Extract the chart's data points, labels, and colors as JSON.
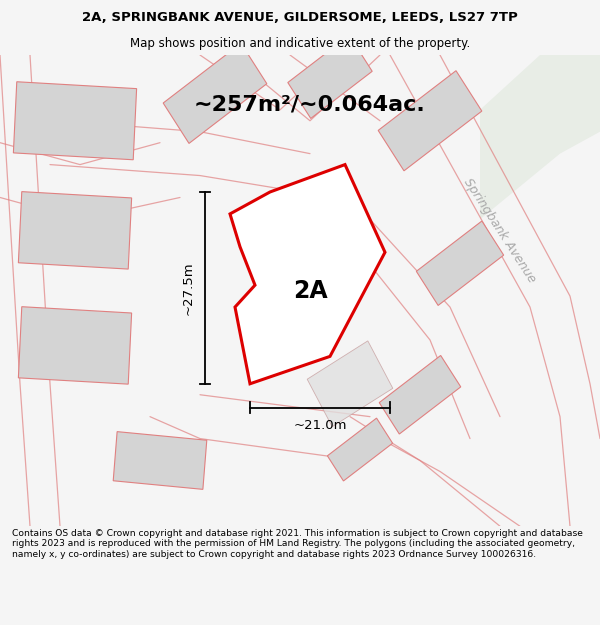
{
  "title_line1": "2A, SPRINGBANK AVENUE, GILDERSOME, LEEDS, LS27 7TP",
  "title_line2": "Map shows position and indicative extent of the property.",
  "area_label": "~257m²/~0.064ac.",
  "plot_label": "2A",
  "width_label": "~21.0m",
  "height_label": "~27.5m",
  "footer_text": "Contains OS data © Crown copyright and database right 2021. This information is subject to Crown copyright and database rights 2023 and is reproduced with the permission of HM Land Registry. The polygons (including the associated geometry, namely x, y co-ordinates) are subject to Crown copyright and database rights 2023 Ordnance Survey 100026316.",
  "bg_color": "#f5f5f5",
  "map_bg": "#ffffff",
  "plot_fill": "#ffffff",
  "plot_edge": "#dd0000",
  "building_fill": "#d4d4d4",
  "building_edge": "#e08080",
  "road_color": "#e08080",
  "green_area": "#e8ede6",
  "road_alpha": 0.7,
  "building_lw": 0.8,
  "road_lw": 0.9
}
